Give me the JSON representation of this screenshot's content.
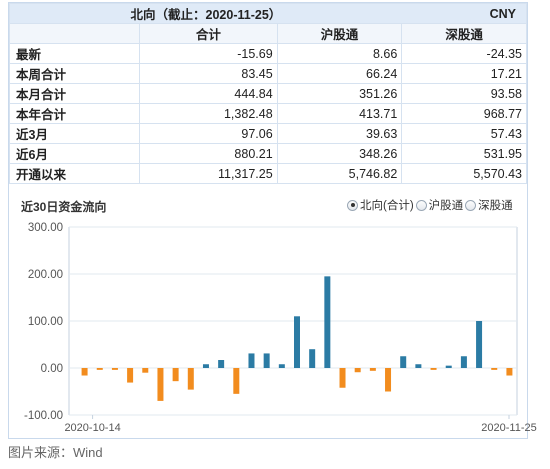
{
  "table": {
    "title": "北向（截止：2020-11-25）",
    "currency": "CNY",
    "columns": [
      "合计",
      "沪股通",
      "深股通"
    ],
    "rows": [
      {
        "label": "最新",
        "values": [
          "-15.69",
          "8.66",
          "-24.35"
        ]
      },
      {
        "label": "本周合计",
        "values": [
          "83.45",
          "66.24",
          "17.21"
        ]
      },
      {
        "label": "本月合计",
        "values": [
          "444.84",
          "351.26",
          "93.58"
        ]
      },
      {
        "label": "本年合计",
        "values": [
          "1,382.48",
          "413.71",
          "968.77"
        ]
      },
      {
        "label": "近3月",
        "values": [
          "97.06",
          "39.63",
          "57.43"
        ]
      },
      {
        "label": "近6月",
        "values": [
          "880.21",
          "348.26",
          "531.95"
        ]
      },
      {
        "label": "开通以来",
        "values": [
          "11,317.25",
          "5,746.82",
          "5,570.43"
        ]
      }
    ]
  },
  "chart_section": {
    "title": "近30日资金流向",
    "radio_options": [
      {
        "label": "北向(合计)",
        "selected": true
      },
      {
        "label": "沪股通",
        "selected": false
      },
      {
        "label": "深股通",
        "selected": false
      }
    ]
  },
  "chart_data": {
    "type": "bar",
    "title": "近30日资金流向",
    "ylim": [
      -100,
      300
    ],
    "yticks": [
      "300.00",
      "200.00",
      "100.00",
      "0.00",
      "-100.00"
    ],
    "ytick_values": [
      300,
      200,
      100,
      0,
      -100
    ],
    "x_first_label": "2020-10-14",
    "x_last_label": "2020-11-25",
    "colors": {
      "positive": "#2b7ba4",
      "negative": "#f28c1e"
    },
    "values": [
      -16,
      -4,
      -4,
      -31,
      -10,
      -70,
      -28,
      -46,
      8,
      17,
      -55,
      31,
      31,
      8,
      110,
      40,
      195,
      -42,
      -9,
      -6,
      -50,
      25,
      8,
      -4,
      5,
      25,
      100,
      -4,
      -16
    ]
  },
  "source": "图片来源：Wind"
}
